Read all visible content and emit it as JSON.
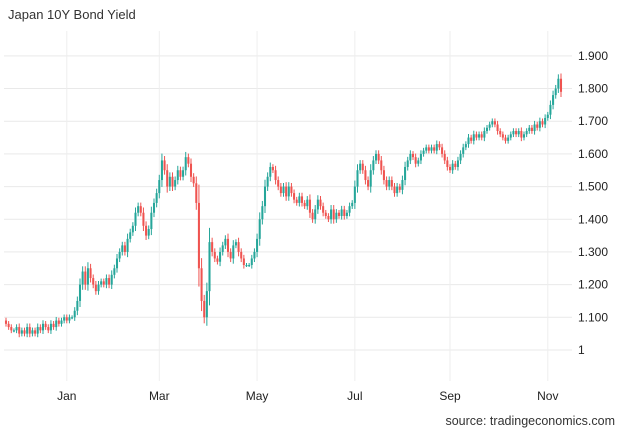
{
  "chart_data": {
    "type": "candlestick",
    "title": "Japan 10Y Bond Yield",
    "source": "source: tradingeconomics.com",
    "xlabel": "",
    "ylabel": "",
    "ylim": [
      0.905,
      1.97
    ],
    "yticks": [
      1,
      1.1,
      1.2,
      1.3,
      1.4,
      1.5,
      1.6,
      1.7,
      1.8,
      1.9
    ],
    "ytick_labels": [
      "1",
      "1.100",
      "1.200",
      "1.300",
      "1.400",
      "1.500",
      "1.600",
      "1.700",
      "1.800",
      "1.900"
    ],
    "x_tick_labels": [
      "Jan",
      "Mar",
      "May",
      "Jul",
      "Sep",
      "Nov"
    ],
    "x_tick_index": [
      23,
      58,
      95,
      132,
      168,
      205
    ],
    "grid": true,
    "colors": {
      "up": "#26a69a",
      "down": "#ef5350",
      "grid": "#e9e9e9"
    },
    "closes": [
      1.08,
      1.07,
      1.06,
      1.06,
      1.07,
      1.05,
      1.06,
      1.05,
      1.07,
      1.05,
      1.06,
      1.05,
      1.07,
      1.06,
      1.08,
      1.07,
      1.06,
      1.08,
      1.07,
      1.09,
      1.08,
      1.09,
      1.1,
      1.09,
      1.1,
      1.1,
      1.12,
      1.15,
      1.2,
      1.24,
      1.2,
      1.25,
      1.22,
      1.2,
      1.18,
      1.2,
      1.21,
      1.2,
      1.22,
      1.2,
      1.23,
      1.25,
      1.28,
      1.3,
      1.32,
      1.3,
      1.34,
      1.36,
      1.38,
      1.42,
      1.44,
      1.42,
      1.38,
      1.35,
      1.37,
      1.42,
      1.45,
      1.48,
      1.52,
      1.58,
      1.55,
      1.5,
      1.53,
      1.5,
      1.52,
      1.55,
      1.53,
      1.55,
      1.59,
      1.57,
      1.53,
      1.51,
      1.45,
      1.25,
      1.15,
      1.1,
      1.18,
      1.33,
      1.3,
      1.28,
      1.27,
      1.3,
      1.32,
      1.34,
      1.3,
      1.28,
      1.32,
      1.33,
      1.3,
      1.28,
      1.26,
      1.26,
      1.26,
      1.28,
      1.3,
      1.34,
      1.4,
      1.44,
      1.5,
      1.53,
      1.56,
      1.55,
      1.52,
      1.5,
      1.48,
      1.5,
      1.47,
      1.5,
      1.48,
      1.46,
      1.45,
      1.47,
      1.45,
      1.44,
      1.46,
      1.42,
      1.4,
      1.43,
      1.46,
      1.44,
      1.42,
      1.41,
      1.4,
      1.43,
      1.4,
      1.42,
      1.41,
      1.43,
      1.41,
      1.42,
      1.44,
      1.45,
      1.5,
      1.55,
      1.57,
      1.55,
      1.52,
      1.5,
      1.55,
      1.58,
      1.6,
      1.58,
      1.55,
      1.52,
      1.5,
      1.52,
      1.5,
      1.48,
      1.5,
      1.49,
      1.52,
      1.56,
      1.58,
      1.6,
      1.59,
      1.57,
      1.58,
      1.6,
      1.61,
      1.62,
      1.61,
      1.62,
      1.61,
      1.63,
      1.62,
      1.6,
      1.58,
      1.56,
      1.55,
      1.57,
      1.56,
      1.58,
      1.6,
      1.62,
      1.63,
      1.65,
      1.64,
      1.66,
      1.65,
      1.66,
      1.65,
      1.67,
      1.68,
      1.69,
      1.7,
      1.69,
      1.67,
      1.66,
      1.65,
      1.64,
      1.65,
      1.66,
      1.67,
      1.66,
      1.67,
      1.65,
      1.66,
      1.67,
      1.68,
      1.67,
      1.69,
      1.68,
      1.7,
      1.69,
      1.71,
      1.72,
      1.75,
      1.78,
      1.8,
      1.83,
      1.79
    ],
    "first_open": 1.09
  }
}
